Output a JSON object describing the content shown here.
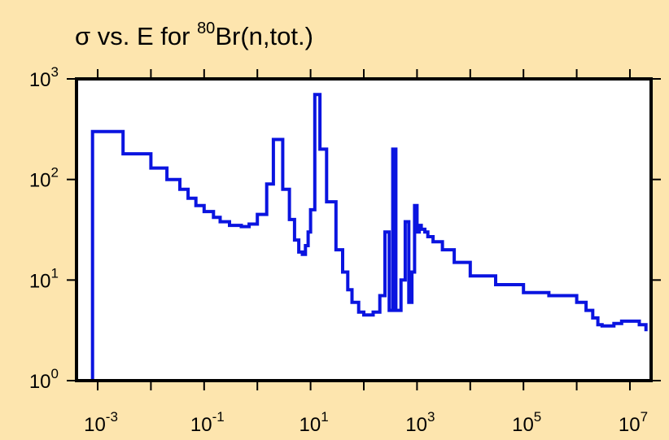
{
  "chart_data": {
    "type": "line",
    "title": {
      "prefix": "σ vs. E for ",
      "sup": "80",
      "suffix": "Br(n,tot.)"
    },
    "xlabel": "",
    "ylabel": "",
    "x_scale": "log",
    "y_scale": "log",
    "xlim": [
      0.0004,
      25000000
    ],
    "ylim": [
      1,
      1000
    ],
    "grid": false,
    "x_ticks": [
      {
        "base": "10",
        "exp": "-3",
        "value": 0.001
      },
      {
        "base": "10",
        "exp": "-1",
        "value": 0.1
      },
      {
        "base": "10",
        "exp": "1",
        "value": 10
      },
      {
        "base": "10",
        "exp": "3",
        "value": 1000
      },
      {
        "base": "10",
        "exp": "5",
        "value": 100000
      },
      {
        "base": "10",
        "exp": "7",
        "value": 10000000
      }
    ],
    "y_ticks": [
      {
        "base": "10",
        "exp": "0",
        "value": 1
      },
      {
        "base": "10",
        "exp": "1",
        "value": 10
      },
      {
        "base": "10",
        "exp": "2",
        "value": 100
      },
      {
        "base": "10",
        "exp": "3",
        "value": 1000
      }
    ],
    "colors": {
      "line": "#0a14e0",
      "plot_bg": "#ffffff",
      "page_bg": "#fde5ae",
      "frame": "#000000"
    },
    "series": [
      {
        "step": true,
        "x": [
          0.0008,
          0.0008,
          0.003,
          0.01,
          0.02,
          0.035,
          0.05,
          0.07,
          0.1,
          0.15,
          0.2,
          0.3,
          0.5,
          0.7,
          1.0,
          1.5,
          2.0,
          3.0,
          4.0,
          5.0,
          6.0,
          7.0,
          8.0,
          9.0,
          10.0,
          12.0,
          15.0,
          20.0,
          30.0,
          40.0,
          50.0,
          60.0,
          80.0,
          100.0,
          150.0,
          200.0,
          250.0,
          300.0,
          350.0,
          400.0,
          500.0,
          600.0,
          700.0,
          800.0,
          900.0,
          1000.0,
          1100.0,
          1200.0,
          1400.0,
          1600.0,
          2000.0,
          3000.0,
          5000.0,
          10000.0,
          30000.0,
          100000.0,
          300000.0,
          1000000.0,
          1500000.0,
          2000000.0,
          2500000.0,
          3000000.0,
          5000000.0,
          7000000.0,
          10000000.0,
          15000000.0,
          20000000.0
        ],
        "y": [
          1.0,
          300,
          180,
          130,
          100,
          80,
          65,
          55,
          48,
          42,
          38,
          35,
          34,
          36,
          45,
          90,
          250,
          80,
          40,
          25,
          19,
          18,
          22,
          30,
          50,
          700,
          200,
          60,
          20,
          12,
          8,
          6,
          4.8,
          4.5,
          4.8,
          7,
          30,
          5,
          200,
          5,
          10,
          38,
          6,
          12,
          55,
          30,
          35,
          32,
          30,
          27,
          24,
          20,
          15,
          11,
          9,
          7.5,
          7,
          6,
          5,
          4.2,
          3.6,
          3.5,
          3.7,
          3.9,
          3.9,
          3.6,
          3.1
        ]
      }
    ]
  }
}
